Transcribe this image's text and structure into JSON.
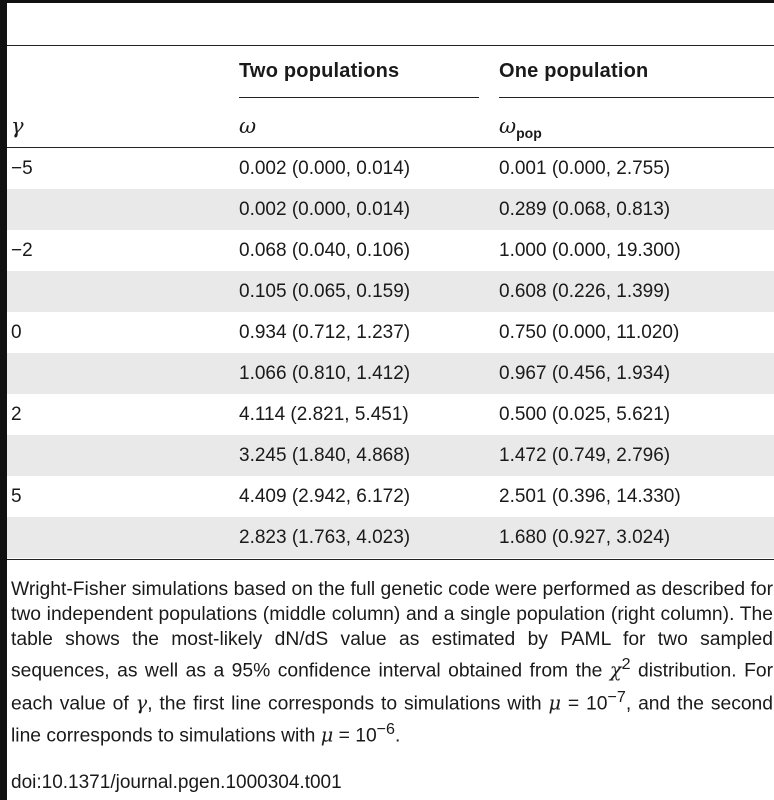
{
  "table": {
    "header": {
      "col_two": "Two populations",
      "col_one": "One population",
      "sym_gamma": "γ",
      "sym_omega": "ω",
      "sym_omega_pop": "ω",
      "sym_omega_pop_sub": "pop"
    },
    "rows": [
      {
        "gamma": "−5",
        "two": "0.002 (0.000, 0.014)",
        "one": "0.001 (0.000, 2.755)"
      },
      {
        "gamma": "",
        "two": "0.002 (0.000, 0.014)",
        "one": "0.289 (0.068, 0.813)"
      },
      {
        "gamma": "−2",
        "two": "0.068 (0.040, 0.106)",
        "one": "1.000 (0.000, 19.300)"
      },
      {
        "gamma": "",
        "two": "0.105 (0.065, 0.159)",
        "one": "0.608 (0.226, 1.399)"
      },
      {
        "gamma": "0",
        "two": "0.934 (0.712, 1.237)",
        "one": "0.750 (0.000, 11.020)"
      },
      {
        "gamma": "",
        "two": "1.066 (0.810, 1.412)",
        "one": "0.967 (0.456, 1.934)"
      },
      {
        "gamma": "2",
        "two": "4.114 (2.821, 5.451)",
        "one": "0.500 (0.025, 5.621)"
      },
      {
        "gamma": "",
        "two": "3.245 (1.840, 4.868)",
        "one": "1.472 (0.749, 2.796)"
      },
      {
        "gamma": "5",
        "two": "4.409 (2.942, 6.172)",
        "one": "2.501 (0.396, 14.330)"
      },
      {
        "gamma": "",
        "two": "2.823 (1.763, 4.023)",
        "one": "1.680 (0.927, 3.024)"
      }
    ]
  },
  "footnote": {
    "p1": "Wright-Fisher simulations based on the full genetic code were performed as described for two independent populations (middle column) and a single population (right column). The table shows the most-likely dN/dS value as estimated by PAML for two sampled sequences, as well as a 95% confidence interval obtained from the ",
    "chi": "χ",
    "chi_sup": "2",
    "p2": " distribution. For each value of ",
    "gamma": "γ",
    "p3": ", the first line corresponds to simulations with ",
    "mu1": "μ",
    "eq1": " = 10",
    "exp1": "−7",
    "p4": ", and the second line corresponds to simulations with ",
    "mu2": "μ",
    "eq2": " = 10",
    "exp2": "−6",
    "p5": "."
  },
  "doi": "doi:10.1371/journal.pgen.1000304.t001"
}
